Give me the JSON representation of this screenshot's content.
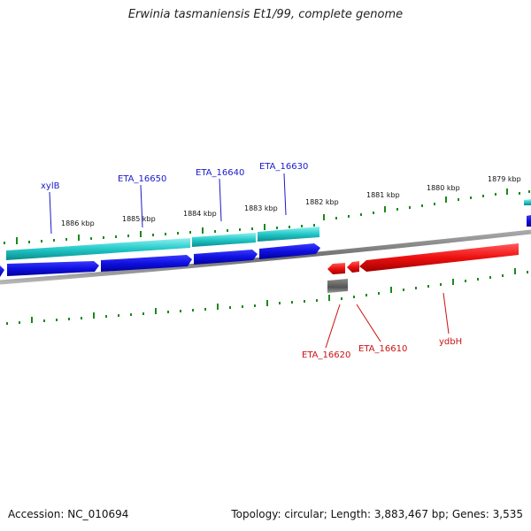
{
  "title": "Erwinia tasmaniensis Et1/99, complete genome",
  "footer": {
    "accession": "Accession: NC_010694",
    "summary": "Topology: circular; Length: 3,883,467 bp; Genes: 3,535"
  },
  "scale_labels": [
    "1886 kbp",
    "1885 kbp",
    "1884 kbp",
    "1883 kbp",
    "1882 kbp",
    "1881 kbp",
    "1880 kbp",
    "1879 kbp"
  ],
  "top_gene_labels": [
    "xylB",
    "ETA_16650",
    "ETA_16640",
    "ETA_16630"
  ],
  "bottom_gene_labels": [
    "ETA_16620",
    "ETA_16610",
    "ydbH"
  ],
  "colors": {
    "forward_gene": "#1010e0",
    "forward_cds": "#20c8c8",
    "reverse_gene": "#ee1010",
    "other": "#666666",
    "tick": "#1a8a1a",
    "backbone": "#777777",
    "top_label": "#1a1acc",
    "bottom_label": "#cc1111"
  }
}
